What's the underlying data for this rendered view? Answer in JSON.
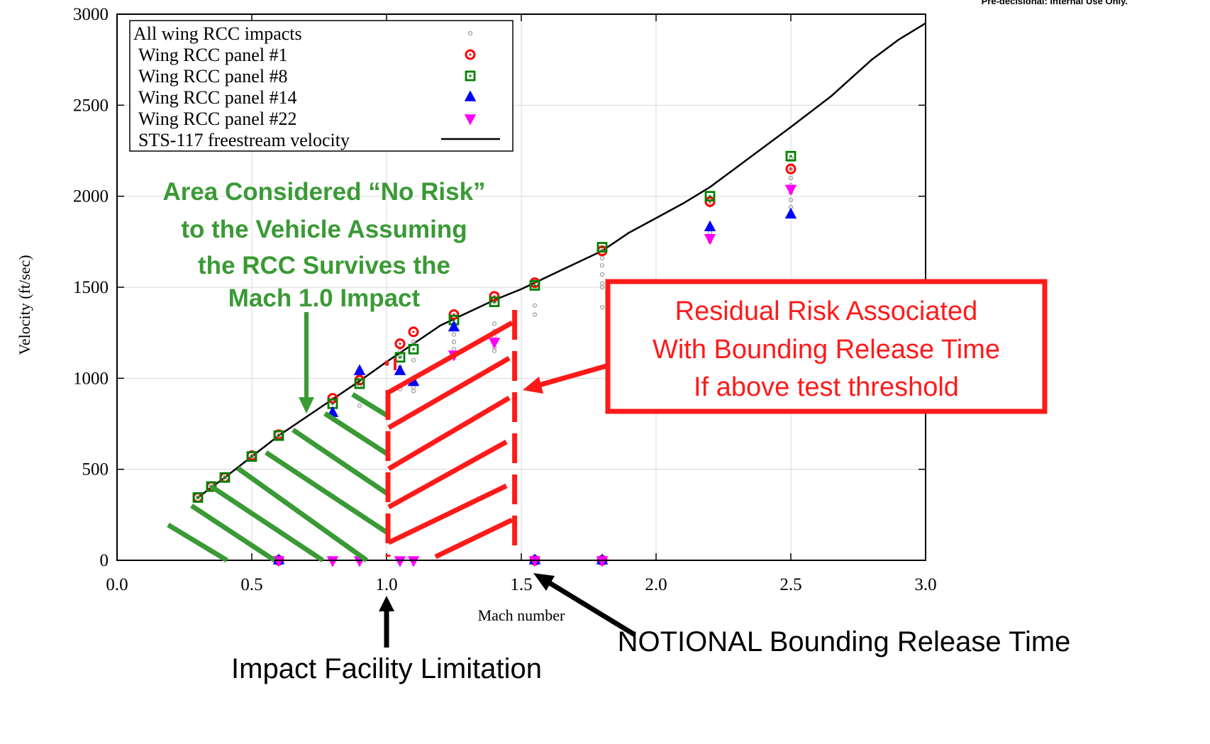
{
  "header_note": "Pre-decisional: Internal Use Only.",
  "chart_data": {
    "type": "scatter",
    "xlabel": "Mach number",
    "ylabel": "Velocity (ft/sec)",
    "xlim": [
      0.0,
      3.0
    ],
    "ylim": [
      0,
      3000
    ],
    "xticks": [
      0.0,
      0.5,
      1.0,
      1.5,
      2.0,
      2.5,
      3.0
    ],
    "xtick_labels": [
      "0.0",
      "0.5",
      "1.0",
      "1.5",
      "2.0",
      "2.5",
      "3.0"
    ],
    "yticks": [
      0,
      500,
      1000,
      1500,
      2000,
      2500,
      3000
    ],
    "ytick_labels": [
      "0",
      "500",
      "1000",
      "1500",
      "2000",
      "2500",
      "3000"
    ],
    "grid": true,
    "legend_position": "top-left",
    "series": [
      {
        "name": "All wing RCC impacts",
        "marker": "small-circle",
        "color": "#999999",
        "points": [
          [
            0.3,
            345
          ],
          [
            0.35,
            405
          ],
          [
            0.4,
            455
          ],
          [
            0.5,
            570
          ],
          [
            0.6,
            685
          ],
          [
            0.8,
            870
          ],
          [
            0.8,
            880
          ],
          [
            0.9,
            850
          ],
          [
            0.9,
            1000
          ],
          [
            0.9,
            960
          ],
          [
            0.9,
            1020
          ],
          [
            1.05,
            940
          ],
          [
            1.05,
            1060
          ],
          [
            1.05,
            1150
          ],
          [
            1.05,
            1120
          ],
          [
            1.1,
            930
          ],
          [
            1.1,
            950
          ],
          [
            1.1,
            1000
          ],
          [
            1.1,
            1100
          ],
          [
            1.1,
            1200
          ],
          [
            1.25,
            1120
          ],
          [
            1.25,
            1160
          ],
          [
            1.25,
            1200
          ],
          [
            1.25,
            1240
          ],
          [
            1.25,
            1300
          ],
          [
            1.4,
            1150
          ],
          [
            1.4,
            1170
          ],
          [
            1.4,
            1200
          ],
          [
            1.4,
            1230
          ],
          [
            1.4,
            1260
          ],
          [
            1.4,
            1300
          ],
          [
            1.4,
            1420
          ],
          [
            1.55,
            1350
          ],
          [
            1.55,
            1400
          ],
          [
            1.55,
            1500
          ],
          [
            1.8,
            1390
          ],
          [
            1.8,
            1500
          ],
          [
            1.8,
            1520
          ],
          [
            1.8,
            1570
          ],
          [
            1.8,
            1620
          ],
          [
            1.8,
            1660
          ],
          [
            1.8,
            1700
          ],
          [
            2.2,
            1750
          ],
          [
            2.2,
            1770
          ],
          [
            2.2,
            1800
          ],
          [
            2.2,
            1950
          ],
          [
            2.2,
            1990
          ],
          [
            2.5,
            1900
          ],
          [
            2.5,
            1940
          ],
          [
            2.5,
            1980
          ],
          [
            2.5,
            2020
          ],
          [
            2.5,
            2060
          ],
          [
            2.5,
            2100
          ],
          [
            2.5,
            2150
          ],
          [
            2.5,
            2210
          ],
          [
            0.6,
            0
          ],
          [
            1.55,
            0
          ],
          [
            1.8,
            0
          ]
        ]
      },
      {
        "name": "Wing RCC panel #1",
        "marker": "circle",
        "color": "#ff0000",
        "points": [
          [
            0.3,
            345
          ],
          [
            0.35,
            405
          ],
          [
            0.4,
            455
          ],
          [
            0.5,
            575
          ],
          [
            0.6,
            690
          ],
          [
            0.8,
            890
          ],
          [
            0.9,
            990
          ],
          [
            1.05,
            1190
          ],
          [
            1.1,
            1255
          ],
          [
            1.25,
            1350
          ],
          [
            1.4,
            1450
          ],
          [
            1.55,
            1525
          ],
          [
            1.8,
            1700
          ],
          [
            2.2,
            1970
          ],
          [
            2.5,
            2150
          ],
          [
            0.6,
            0
          ],
          [
            1.55,
            0
          ],
          [
            1.8,
            0
          ]
        ]
      },
      {
        "name": "Wing RCC panel #8",
        "marker": "square",
        "color": "#008000",
        "points": [
          [
            0.3,
            345
          ],
          [
            0.35,
            405
          ],
          [
            0.4,
            455
          ],
          [
            0.5,
            570
          ],
          [
            0.6,
            685
          ],
          [
            0.8,
            860
          ],
          [
            0.9,
            970
          ],
          [
            1.05,
            1115
          ],
          [
            1.1,
            1160
          ],
          [
            1.25,
            1320
          ],
          [
            1.4,
            1420
          ],
          [
            1.55,
            1510
          ],
          [
            1.8,
            1720
          ],
          [
            2.2,
            2000
          ],
          [
            2.5,
            2220
          ]
        ]
      },
      {
        "name": "Wing RCC panel #14",
        "marker": "triangle-up",
        "color": "#0000ff",
        "points": [
          [
            0.8,
            810
          ],
          [
            0.9,
            1040
          ],
          [
            1.05,
            1040
          ],
          [
            1.1,
            980
          ],
          [
            1.25,
            1280
          ],
          [
            2.2,
            1830
          ],
          [
            2.5,
            1900
          ],
          [
            0.6,
            0
          ],
          [
            1.55,
            0
          ],
          [
            1.8,
            0
          ]
        ]
      },
      {
        "name": "Wing RCC panel #22",
        "marker": "triangle-down",
        "color": "#ff00ff",
        "points": [
          [
            1.25,
            1130
          ],
          [
            1.4,
            1200
          ],
          [
            2.2,
            1770
          ],
          [
            2.5,
            2040
          ],
          [
            0.6,
            0
          ],
          [
            0.8,
            0
          ],
          [
            0.9,
            0
          ],
          [
            1.05,
            0
          ],
          [
            1.1,
            0
          ],
          [
            1.55,
            0
          ],
          [
            1.8,
            0
          ]
        ]
      },
      {
        "name": "STS-117 freestream velocity",
        "marker": "line",
        "color": "#000000",
        "points": [
          [
            0.3,
            345
          ],
          [
            0.35,
            400
          ],
          [
            0.4,
            455
          ],
          [
            0.5,
            570
          ],
          [
            0.6,
            685
          ],
          [
            0.7,
            785
          ],
          [
            0.8,
            885
          ],
          [
            0.9,
            985
          ],
          [
            1.0,
            1090
          ],
          [
            1.1,
            1190
          ],
          [
            1.2,
            1290
          ],
          [
            1.3,
            1360
          ],
          [
            1.4,
            1430
          ],
          [
            1.5,
            1490
          ],
          [
            1.6,
            1560
          ],
          [
            1.7,
            1630
          ],
          [
            1.8,
            1700
          ],
          [
            1.9,
            1800
          ],
          [
            2.0,
            1880
          ],
          [
            2.1,
            1960
          ],
          [
            2.2,
            2050
          ],
          [
            2.3,
            2160
          ],
          [
            2.4,
            2270
          ],
          [
            2.5,
            2380
          ],
          [
            2.65,
            2550
          ],
          [
            2.8,
            2750
          ],
          [
            2.9,
            2860
          ],
          [
            3.0,
            2950
          ]
        ]
      }
    ],
    "annotations": {
      "green_text_lines": [
        "Area Considered “No Risk”",
        "to the Vehicle Assuming",
        "the RCC Survives the",
        "Mach 1.0 Impact"
      ],
      "red_box_lines": [
        "Residual Risk Associated",
        "With Bounding Release Time",
        "If above test threshold"
      ],
      "impact_facility_label": "Impact Facility Limitation",
      "release_time_label": "NOTIONAL Bounding Release Time",
      "threshold_mach": 1.0,
      "release_mach": 1.47
    }
  }
}
